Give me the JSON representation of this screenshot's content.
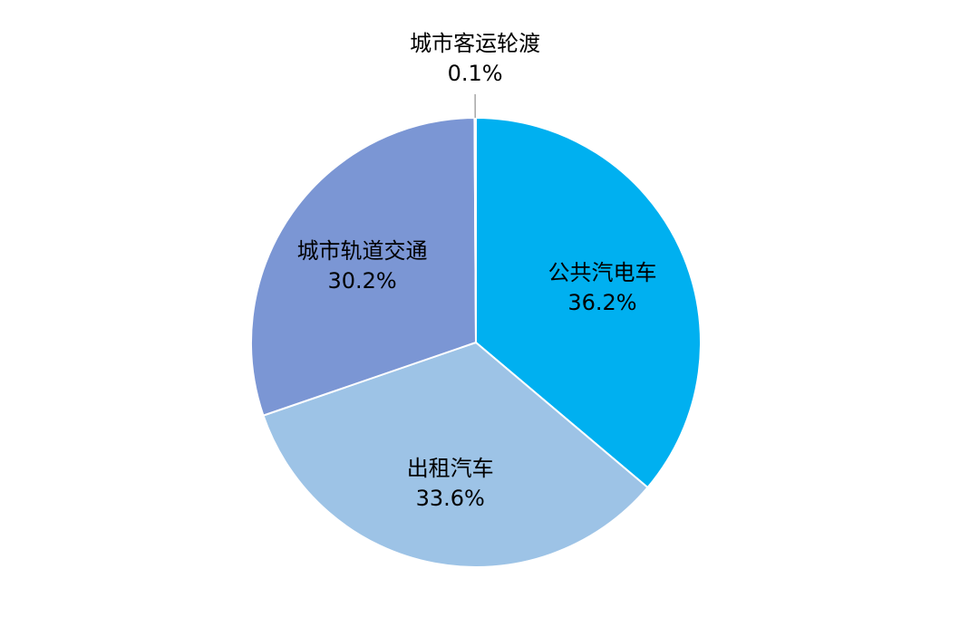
{
  "chart_data": {
    "type": "pie",
    "start_angle_deg": 0,
    "direction": "clockwise",
    "slices": [
      {
        "name": "公共汽电车",
        "value": 36.2,
        "value_label": "36.2%",
        "color": "#00b0f0"
      },
      {
        "name": "出租汽车",
        "value": 33.6,
        "value_label": "33.6%",
        "color": "#9dc3e6"
      },
      {
        "name": "城市轨道交通",
        "value": 30.2,
        "value_label": "30.2%",
        "color": "#7b96d4"
      },
      {
        "name": "城市客运轮渡",
        "value": 0.1,
        "value_label": "0.1%",
        "color": "#4472c4"
      }
    ]
  }
}
